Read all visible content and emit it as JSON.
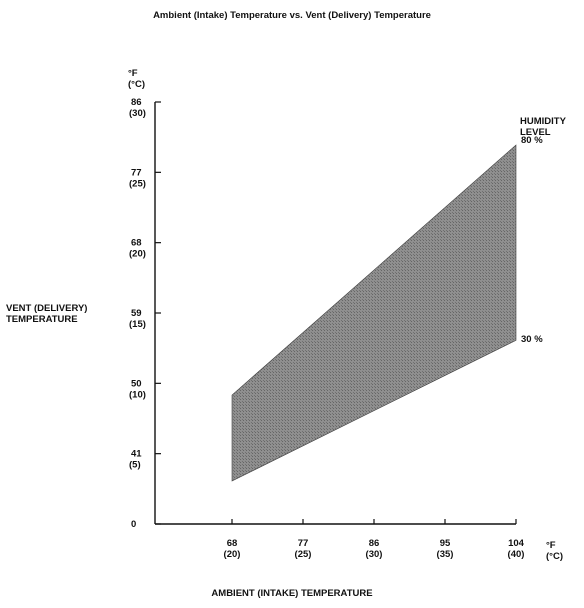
{
  "chart_data": {
    "type": "area",
    "title": "Ambient (Intake) Temperature vs. Vent (Delivery) Temperature",
    "xlabel": "AMBIENT (INTAKE) TEMPERATURE",
    "ylabel": [
      "VENT (DELIVERY)",
      "TEMPERATURE"
    ],
    "x_unit": [
      "°F",
      "(°C)"
    ],
    "y_unit": [
      "°F",
      "(°C)"
    ],
    "legend_title": [
      "HUMIDITY",
      "LEVEL"
    ],
    "x_ticks": [
      {
        "value": 68,
        "f": "68",
        "c": "(20)"
      },
      {
        "value": 77,
        "f": "77",
        "c": "(25)"
      },
      {
        "value": 86,
        "f": "86",
        "c": "(30)"
      },
      {
        "value": 95,
        "f": "95",
        "c": "(35)"
      },
      {
        "value": 104,
        "f": "104",
        "c": "(40)"
      }
    ],
    "y_ticks": [
      {
        "value": 32,
        "f": "0",
        "c": ""
      },
      {
        "value": 41,
        "f": "41",
        "c": "(5)"
      },
      {
        "value": 50,
        "f": "50",
        "c": "(10)"
      },
      {
        "value": 59,
        "f": "59",
        "c": "(15)"
      },
      {
        "value": 68,
        "f": "68",
        "c": "(20)"
      },
      {
        "value": 77,
        "f": "77",
        "c": "(25)"
      },
      {
        "value": 86,
        "f": "86",
        "c": "(30)"
      }
    ],
    "xlim": [
      59,
      104
    ],
    "ylim": [
      32,
      86
    ],
    "series": [
      {
        "name": "80 %",
        "x": [
          68,
          104
        ],
        "y": [
          48.5,
          80.5
        ]
      },
      {
        "name": "30 %",
        "x": [
          68,
          104
        ],
        "y": [
          37.5,
          55.5
        ]
      }
    ],
    "grid": false,
    "fill_color": "#7a7a7a"
  }
}
